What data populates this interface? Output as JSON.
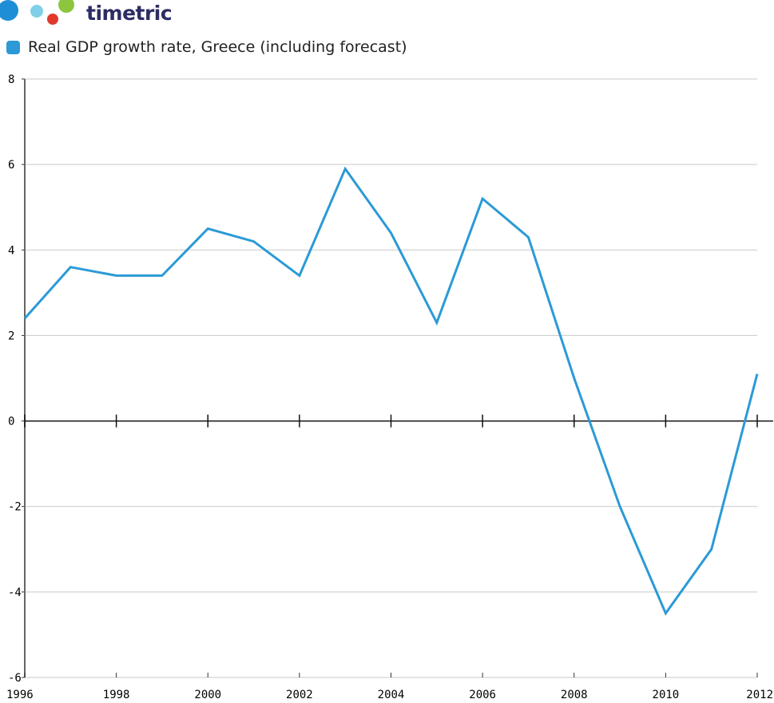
{
  "brand": {
    "name": "timetric",
    "colors": {
      "blue": "#1e8fd6",
      "lightblue": "#7fcfe8",
      "red": "#e03a2c",
      "green": "#8cc63f",
      "text": "#2b2d62"
    }
  },
  "chart_data": {
    "type": "line",
    "title": "",
    "xlabel": "",
    "ylabel": "",
    "legend_position": "top-left",
    "grid": true,
    "xlim": [
      1996,
      2012
    ],
    "ylim": [
      -6,
      8
    ],
    "x_ticks": [
      "1996",
      "1998",
      "2000",
      "2002",
      "2004",
      "2006",
      "2008",
      "2010",
      "2012"
    ],
    "y_ticks": [
      "8",
      "6",
      "4",
      "2",
      "0",
      "-2",
      "-4",
      "-6"
    ],
    "series": [
      {
        "name": "Real GDP growth rate, Greece (including forecast)",
        "color": "#2b9ad6",
        "x": [
          1996,
          1997,
          1998,
          1999,
          2000,
          2001,
          2002,
          2003,
          2004,
          2005,
          2006,
          2007,
          2008,
          2009,
          2010,
          2011,
          2012
        ],
        "y": [
          2.4,
          3.6,
          3.4,
          3.4,
          4.5,
          4.2,
          3.4,
          5.9,
          4.4,
          2.3,
          5.2,
          4.3,
          1.0,
          -2.0,
          -4.5,
          -3.0,
          1.1
        ]
      }
    ]
  }
}
